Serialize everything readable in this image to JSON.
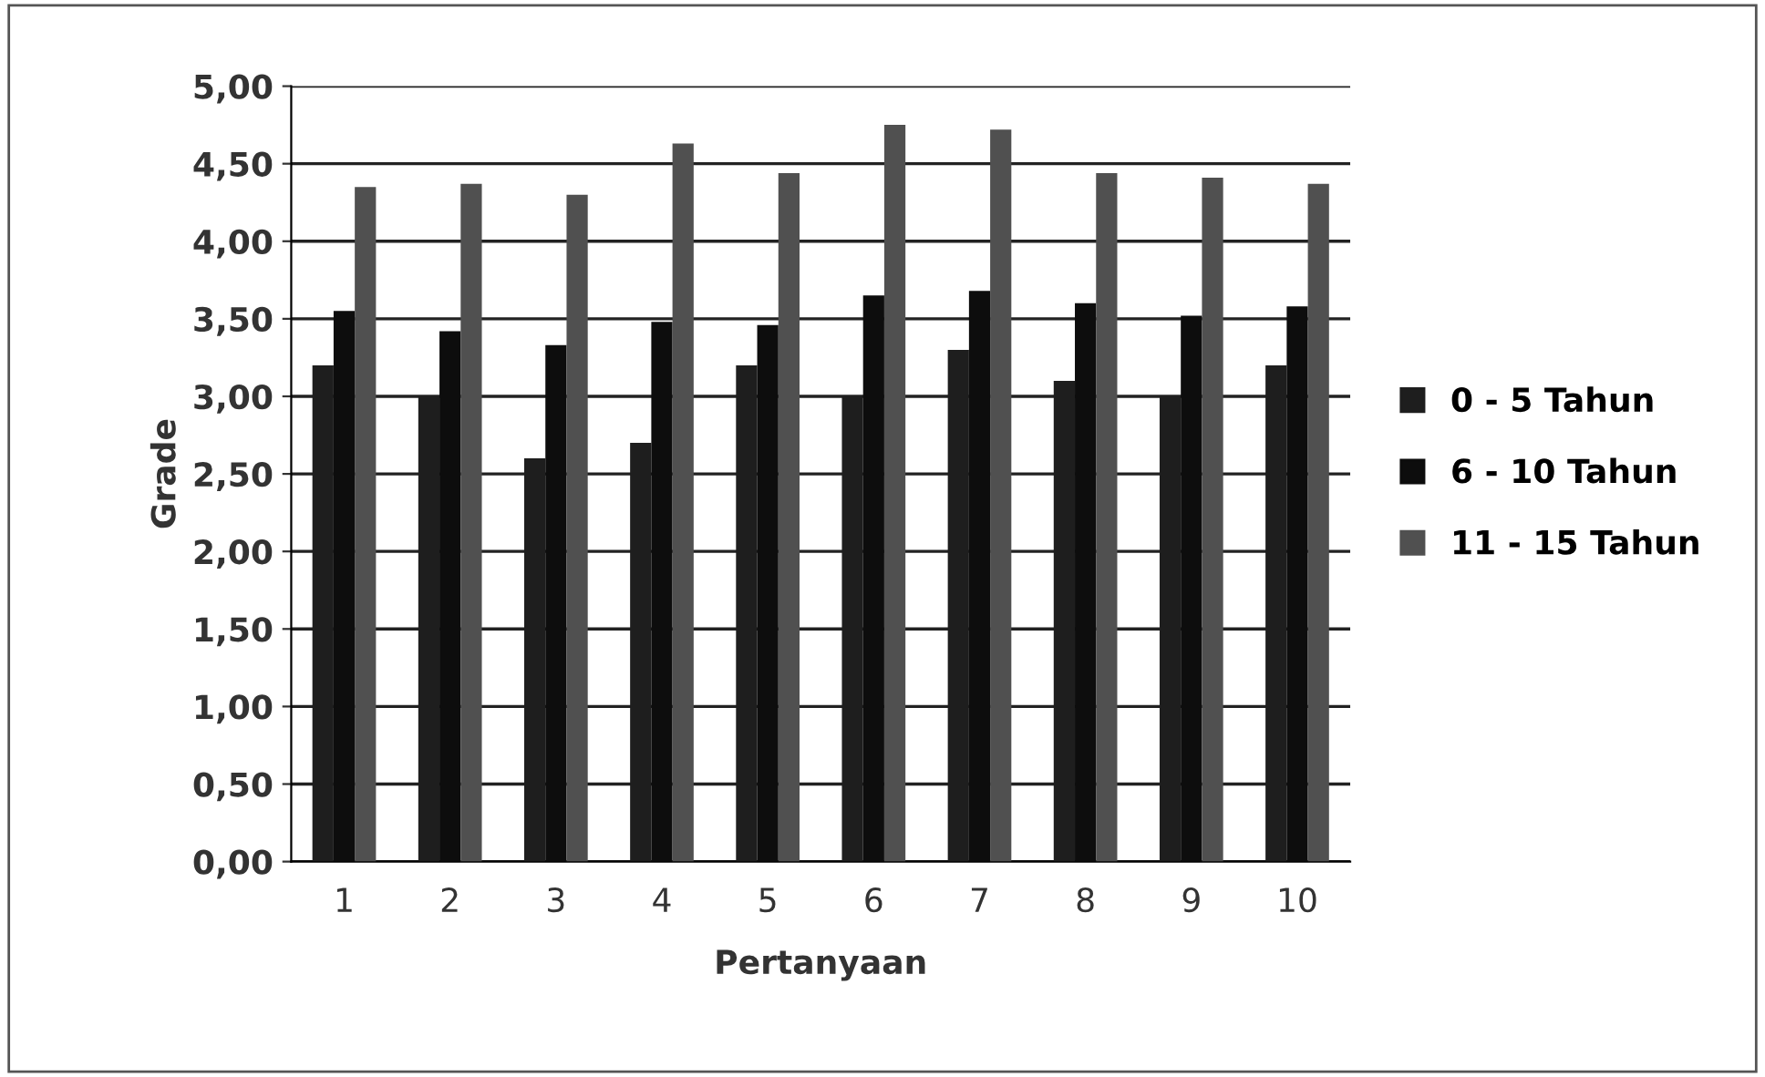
{
  "chart_data": {
    "type": "bar",
    "xlabel": "Pertanyaan",
    "ylabel": "Grade",
    "categories": [
      "1",
      "2",
      "3",
      "4",
      "5",
      "6",
      "7",
      "8",
      "9",
      "10"
    ],
    "series": [
      {
        "name": "0 - 5 Tahun",
        "color": "#1e1e1e",
        "values": [
          3.2,
          3.0,
          2.6,
          2.7,
          3.2,
          3.0,
          3.3,
          3.1,
          3.0,
          3.2
        ]
      },
      {
        "name": "6 - 10 Tahun",
        "color": "#0d0d0d",
        "values": [
          3.55,
          3.42,
          3.33,
          3.48,
          3.46,
          3.65,
          3.68,
          3.6,
          3.52,
          3.58
        ]
      },
      {
        "name": "11 - 15 Tahun",
        "color": "#505050",
        "values": [
          4.35,
          4.37,
          4.3,
          4.63,
          4.44,
          4.75,
          4.72,
          4.44,
          4.41,
          4.37
        ]
      }
    ],
    "ylim": [
      0,
      5
    ],
    "yticks": [
      {
        "value": 0,
        "label": "0,00"
      },
      {
        "value": 0.5,
        "label": "0,50"
      },
      {
        "value": 1,
        "label": "1,00"
      },
      {
        "value": 1.5,
        "label": "1,50"
      },
      {
        "value": 2,
        "label": "2,00"
      },
      {
        "value": 2.5,
        "label": "2,50"
      },
      {
        "value": 3,
        "label": "3,00"
      },
      {
        "value": 3.5,
        "label": "3,50"
      },
      {
        "value": 4,
        "label": "4,00"
      },
      {
        "value": 4.5,
        "label": "4,50"
      },
      {
        "value": 5,
        "label": "5,00"
      }
    ],
    "grid": "y",
    "legend": "right"
  }
}
